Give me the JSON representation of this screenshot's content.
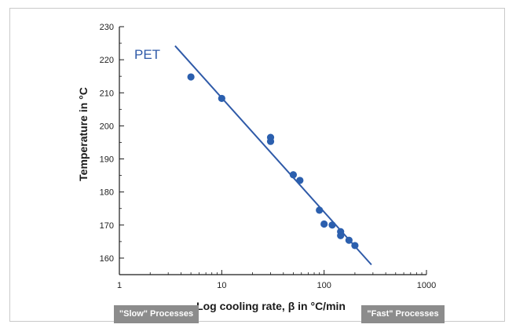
{
  "chart_data": {
    "type": "scatter",
    "series_label": "PET",
    "xlabel": "Log cooling rate, β in °C/min",
    "ylabel": "Temperature in °C",
    "x_scale": "log",
    "xlim": [
      1,
      1000
    ],
    "ylim": [
      155,
      230
    ],
    "x_ticks": [
      1,
      10,
      100,
      1000
    ],
    "x_tick_labels": [
      "1",
      "10",
      "100",
      "1000"
    ],
    "y_ticks": [
      160,
      170,
      180,
      190,
      200,
      210,
      220,
      230
    ],
    "y_tick_labels": [
      "160",
      "170",
      "180",
      "190",
      "200",
      "210",
      "220",
      "230"
    ],
    "grid": false,
    "points": [
      {
        "x": 5,
        "y": 214.8
      },
      {
        "x": 10,
        "y": 208.3
      },
      {
        "x": 30,
        "y": 196.5
      },
      {
        "x": 30,
        "y": 195.3
      },
      {
        "x": 50,
        "y": 185.2
      },
      {
        "x": 58,
        "y": 183.5
      },
      {
        "x": 90,
        "y": 174.5
      },
      {
        "x": 100,
        "y": 170.3
      },
      {
        "x": 120,
        "y": 170.0
      },
      {
        "x": 145,
        "y": 168.0
      },
      {
        "x": 145,
        "y": 166.8
      },
      {
        "x": 175,
        "y": 165.4
      },
      {
        "x": 200,
        "y": 163.8
      }
    ],
    "fit_line": {
      "x": [
        3.5,
        290
      ],
      "y": [
        224.2,
        158.0
      ]
    },
    "colors": {
      "markers": "#2b5fae",
      "line": "#2f5aa8",
      "axes": "#1a1a1a",
      "badge_bg": "#8c8c8c",
      "badge_text": "#ffffff"
    }
  },
  "annotations": {
    "slow_label": "\"Slow\" Processes",
    "fast_label": "\"Fast\" Processes"
  }
}
